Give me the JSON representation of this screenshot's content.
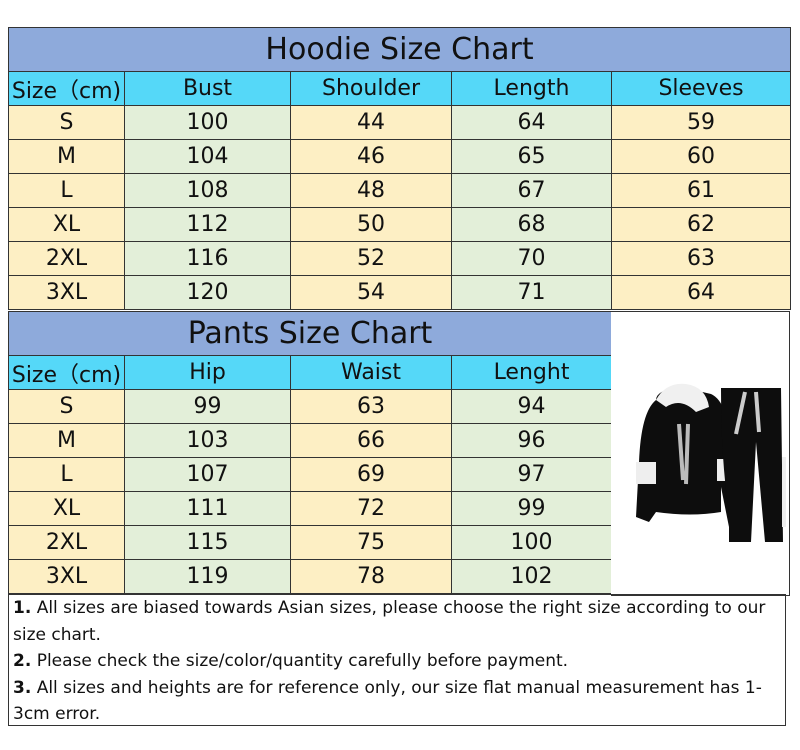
{
  "hoodie": {
    "title": "Hoodie Size Chart",
    "headers": [
      "Size（cm)",
      "Bust",
      "Shoulder",
      "Length",
      "Sleeves"
    ],
    "rows": [
      [
        "S",
        "100",
        "44",
        "64",
        "59"
      ],
      [
        "M",
        "104",
        "46",
        "65",
        "60"
      ],
      [
        "L",
        "108",
        "48",
        "67",
        "61"
      ],
      [
        "XL",
        "112",
        "50",
        "68",
        "62"
      ],
      [
        "2XL",
        "116",
        "52",
        "70",
        "63"
      ],
      [
        "3XL",
        "120",
        "54",
        "71",
        "64"
      ]
    ]
  },
  "pants": {
    "title": "Pants Size Chart",
    "headers": [
      "Size（cm)",
      "Hip",
      "Waist",
      "Lenght"
    ],
    "rows": [
      [
        "S",
        "99",
        "63",
        "94"
      ],
      [
        "M",
        "103",
        "66",
        "96"
      ],
      [
        "L",
        "107",
        "69",
        "97"
      ],
      [
        "XL",
        "111",
        "72",
        "99"
      ],
      [
        "2XL",
        "115",
        "75",
        "100"
      ],
      [
        "3XL",
        "119",
        "78",
        "102"
      ]
    ]
  },
  "notes": [
    {
      "num": "1.",
      "text": "All sizes are biased towards Asian sizes, please choose the right size according to our size chart."
    },
    {
      "num": "2.",
      "text": "Please check the size/color/quantity carefully before payment."
    },
    {
      "num": "3.",
      "text": "All sizes and heights are for reference only, our size flat manual measurement has 1-3cm error."
    }
  ],
  "colors": {
    "title_bg": "#8eaadb",
    "header_bg": "#55d8f8",
    "yellow_col": "#fdefc4",
    "green_col": "#e3efd9"
  }
}
